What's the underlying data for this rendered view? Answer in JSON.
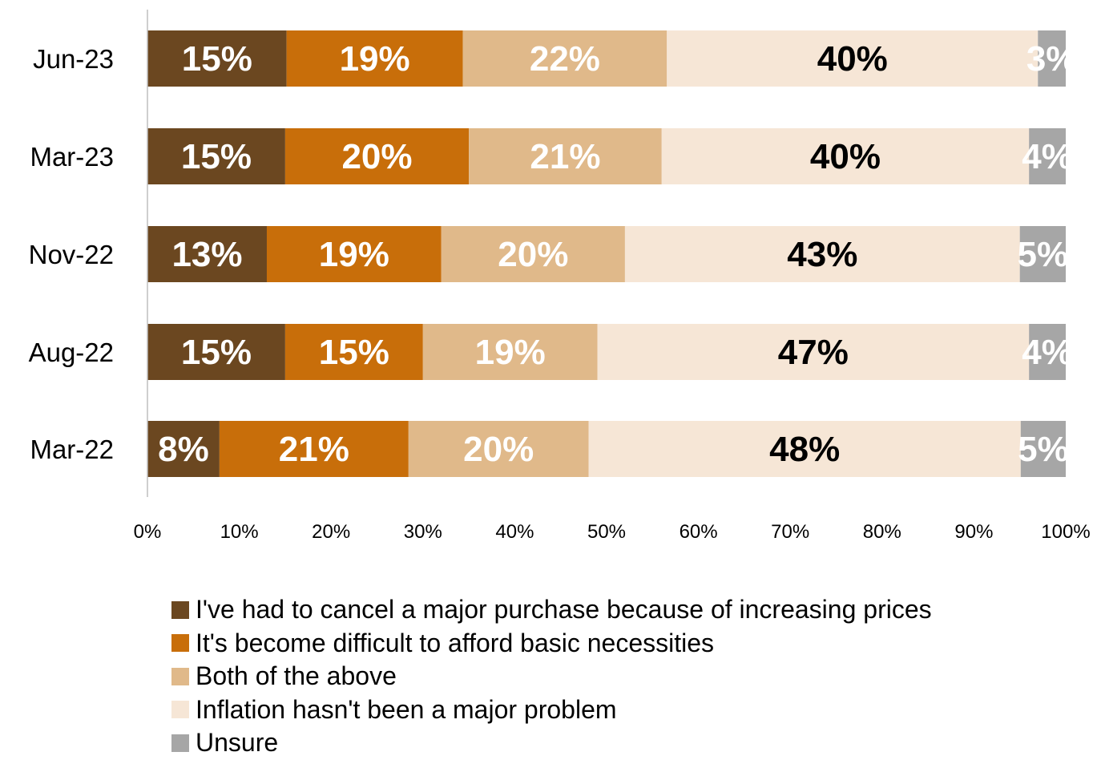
{
  "chart_data": {
    "type": "bar",
    "orientation": "horizontal",
    "stacked": true,
    "categories": [
      "Jun-23",
      "Mar-23",
      "Nov-22",
      "Aug-22",
      "Mar-22"
    ],
    "series": [
      {
        "name": "I've had to cancel a major purchase because of increasing prices",
        "color": "#6B4720",
        "label_color": "#ffffff",
        "values": [
          15,
          15,
          13,
          15,
          8
        ]
      },
      {
        "name": "It's become difficult to afford basic necessities",
        "color": "#C86E0A",
        "label_color": "#ffffff",
        "values": [
          19,
          20,
          19,
          15,
          21
        ]
      },
      {
        "name": "Both of the above",
        "color": "#E0B98A",
        "label_color": "#ffffff",
        "values": [
          22,
          21,
          20,
          19,
          20
        ]
      },
      {
        "name": "Inflation hasn't been a major problem",
        "color": "#F6E6D6",
        "label_color": "#000000",
        "values": [
          40,
          40,
          43,
          47,
          48
        ]
      },
      {
        "name": "Unsure",
        "color": "#A6A6A6",
        "label_color": "#ffffff",
        "values": [
          3,
          4,
          5,
          4,
          5
        ]
      }
    ],
    "data_labels": [
      [
        "15%",
        "19%",
        "22%",
        "40%",
        "3%"
      ],
      [
        "15%",
        "20%",
        "21%",
        "40%",
        "4%"
      ],
      [
        "13%",
        "19%",
        "20%",
        "43%",
        "5%"
      ],
      [
        "15%",
        "15%",
        "19%",
        "47%",
        "4%"
      ],
      [
        "8%",
        "21%",
        "20%",
        "48%",
        "5%"
      ]
    ],
    "xlim": [
      0,
      100
    ],
    "x_ticks": [
      "0%",
      "10%",
      "20%",
      "30%",
      "40%",
      "50%",
      "60%",
      "70%",
      "80%",
      "90%",
      "100%"
    ],
    "grid": false,
    "legend_position": "bottom",
    "title": "",
    "xlabel": "",
    "ylabel": ""
  }
}
